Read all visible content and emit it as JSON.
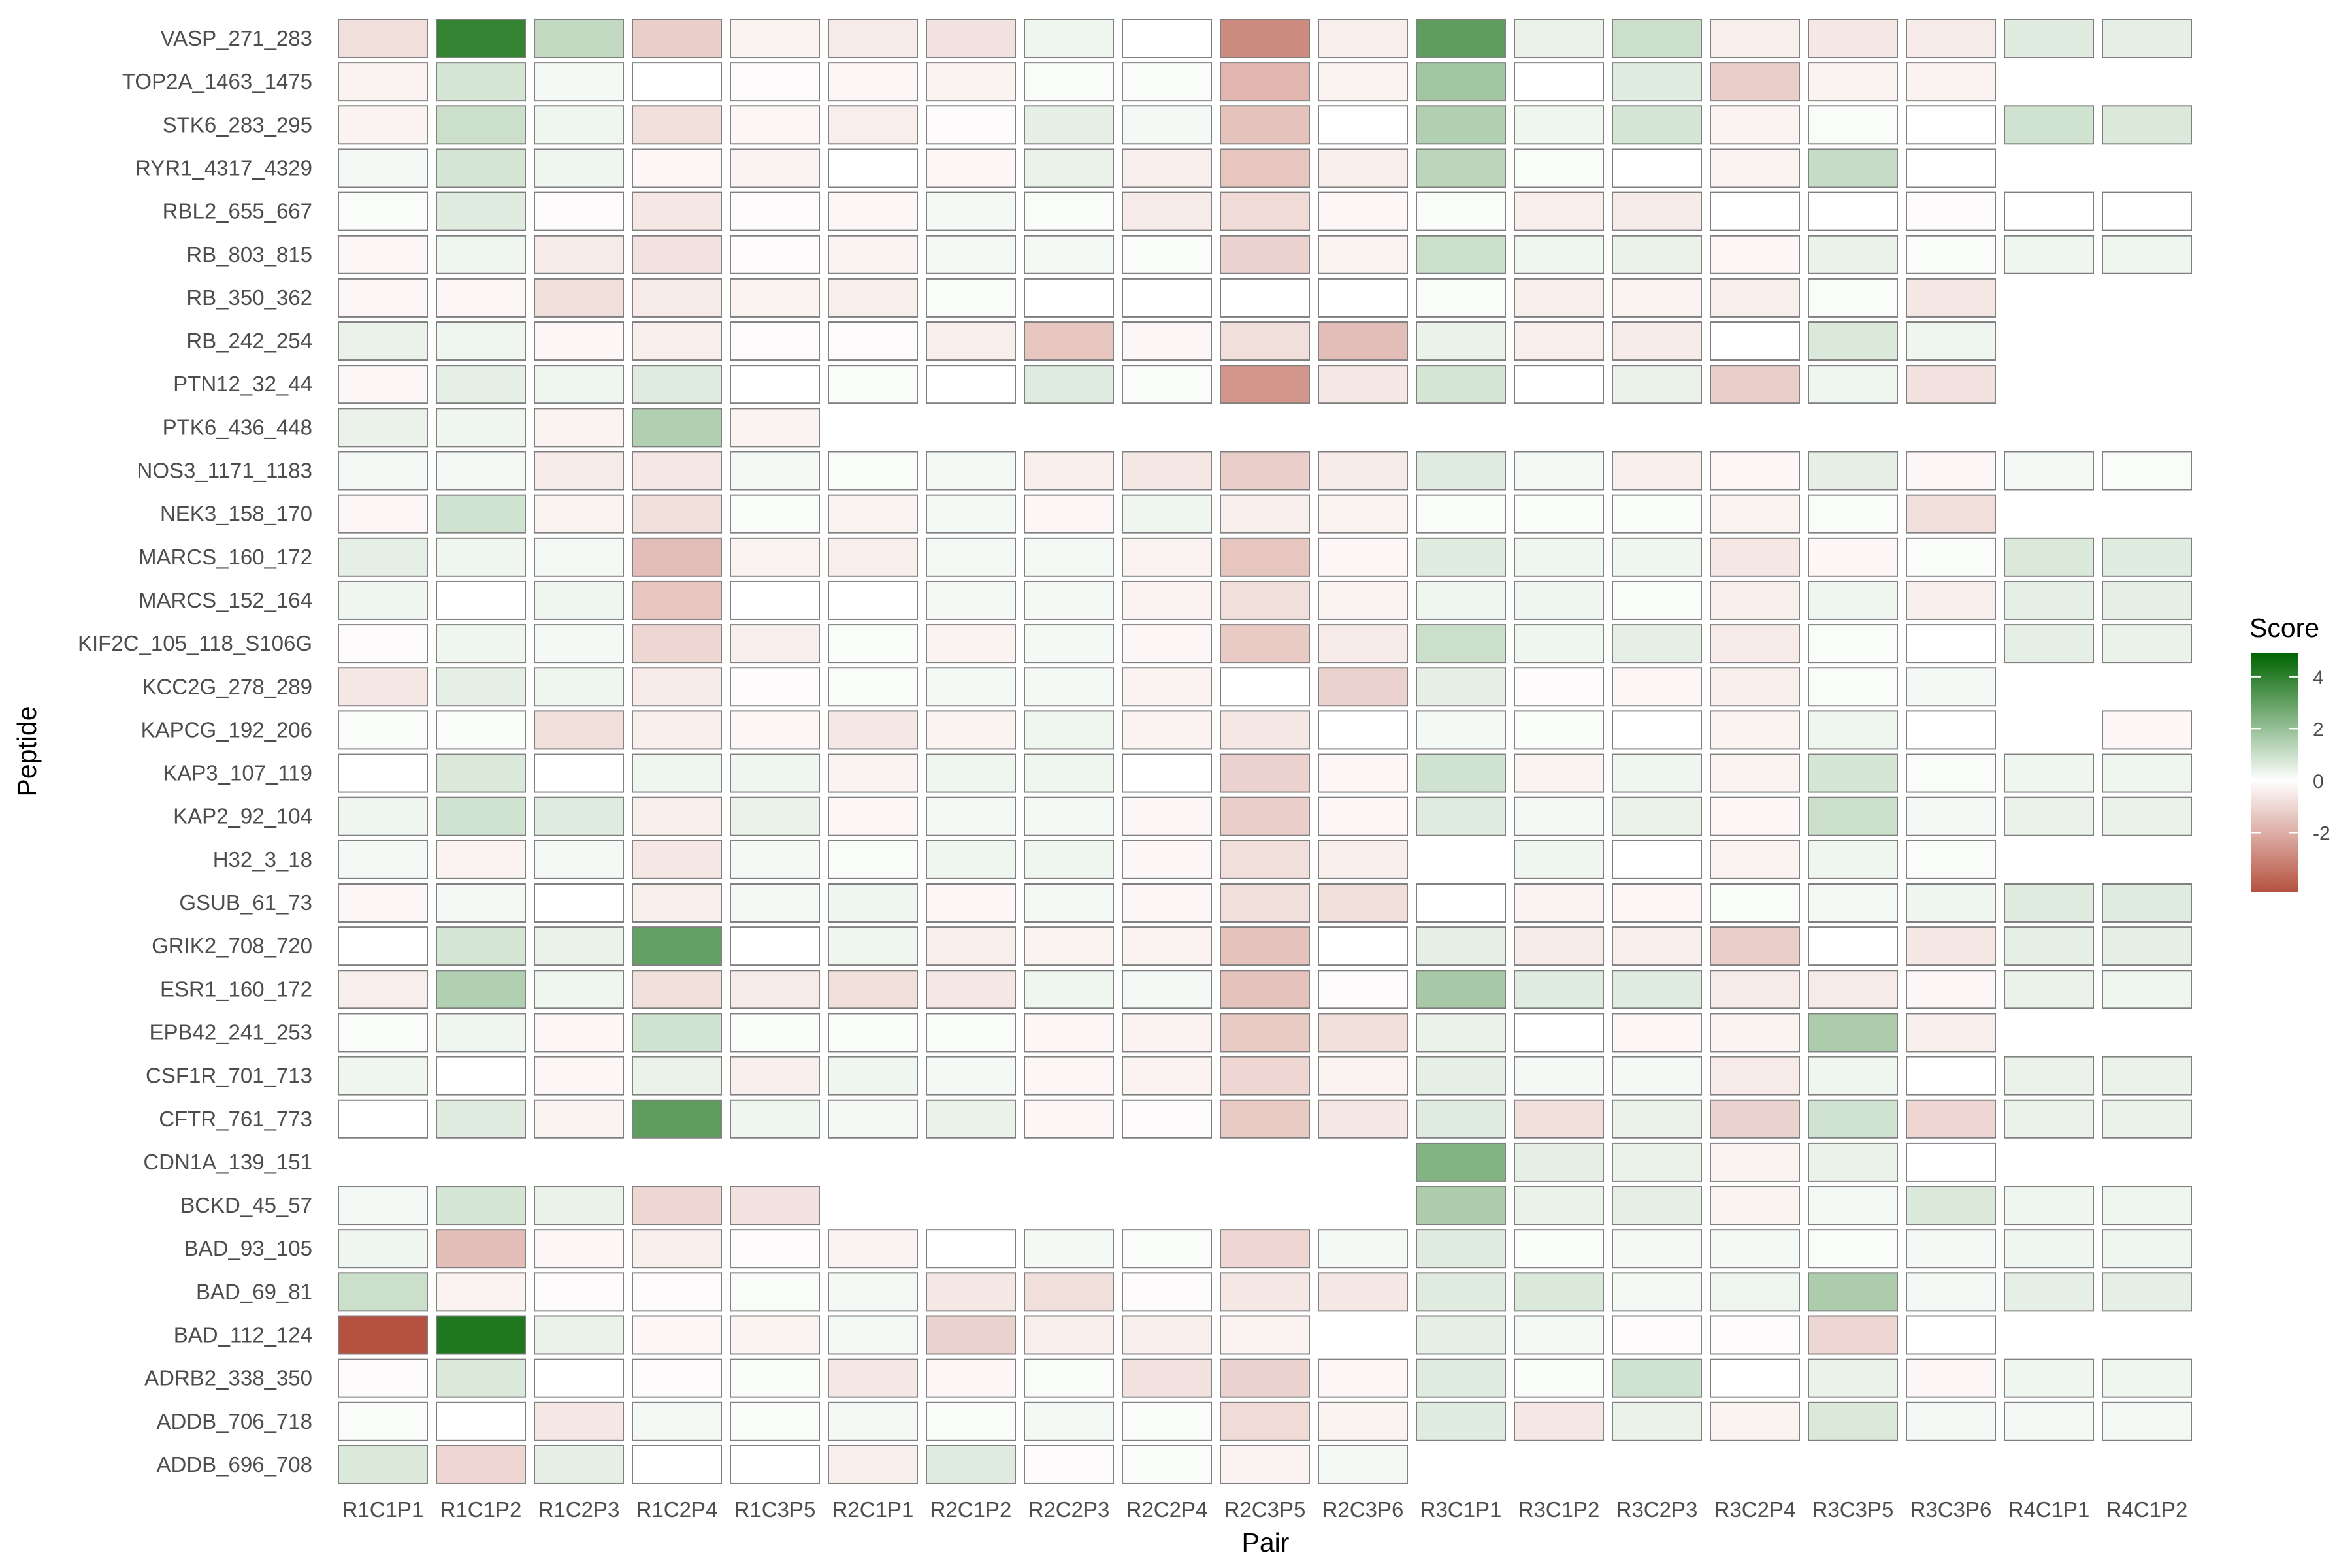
{
  "chart_data": {
    "type": "heatmap",
    "title": "",
    "xlabel": "Pair",
    "ylabel": "Peptide",
    "x_categories": [
      "R1C1P1",
      "R1C1P2",
      "R1C2P3",
      "R1C2P4",
      "R1C3P5",
      "R2C1P1",
      "R2C1P2",
      "R2C2P3",
      "R2C2P4",
      "R2C3P5",
      "R2C3P6",
      "R3C1P1",
      "R3C1P2",
      "R3C2P3",
      "R3C2P4",
      "R3C3P5",
      "R3C3P6",
      "R4C1P1",
      "R4C1P2"
    ],
    "y_categories": [
      "VASP_271_283",
      "TOP2A_1463_1475",
      "STK6_283_295",
      "RYR1_4317_4329",
      "RBL2_655_667",
      "RB_803_815",
      "RB_350_362",
      "RB_242_254",
      "PTN12_32_44",
      "PTK6_436_448",
      "NOS3_1171_1183",
      "NEK3_158_170",
      "MARCS_160_172",
      "MARCS_152_164",
      "KIF2C_105_118_S106G",
      "KCC2G_278_289",
      "KAPCG_192_206",
      "KAP3_107_119",
      "KAP2_92_104",
      "H32_3_18",
      "GSUB_61_73",
      "GRIK2_708_720",
      "ESR1_160_172",
      "EPB42_241_253",
      "CSF1R_701_713",
      "CFTR_761_773",
      "CDN1A_139_151",
      "BCKD_45_57",
      "BAD_93_105",
      "BAD_69_81",
      "BAD_112_124",
      "ADRB2_338_350",
      "ADDB_706_718",
      "ADDB_696_708"
    ],
    "values": [
      [
        -0.8,
        3.9,
        1.2,
        -1.2,
        -0.3,
        -0.5,
        -0.7,
        0.3,
        0.0,
        -2.9,
        -0.4,
        3.1,
        0.4,
        1.0,
        -0.4,
        -0.6,
        -0.5,
        0.6,
        0.5
      ],
      [
        -0.3,
        0.8,
        0.2,
        0.0,
        -0.1,
        -0.2,
        -0.3,
        0.1,
        0.1,
        -1.8,
        -0.3,
        1.8,
        0.0,
        0.6,
        -1.2,
        -0.3,
        -0.3,
        null,
        null
      ],
      [
        -0.3,
        1.0,
        0.3,
        -0.8,
        -0.2,
        -0.4,
        -0.1,
        0.5,
        0.2,
        -1.5,
        0.0,
        1.5,
        0.3,
        0.8,
        -0.3,
        0.1,
        0.0,
        0.9,
        0.7
      ],
      [
        0.2,
        0.8,
        0.3,
        -0.2,
        -0.3,
        0.0,
        -0.2,
        0.4,
        -0.4,
        -1.4,
        -0.4,
        1.3,
        0.1,
        0.0,
        -0.3,
        1.1,
        0.0,
        null,
        null
      ],
      [
        0.1,
        0.6,
        -0.1,
        -0.6,
        -0.1,
        -0.2,
        0.2,
        0.1,
        -0.5,
        -0.9,
        -0.2,
        0.1,
        -0.4,
        -0.5,
        0.0,
        0.0,
        -0.1,
        0.0,
        0.0
      ],
      [
        -0.2,
        0.3,
        -0.5,
        -0.7,
        -0.1,
        -0.3,
        0.2,
        0.2,
        0.1,
        -1.1,
        -0.3,
        1.0,
        0.3,
        0.4,
        -0.2,
        0.4,
        0.1,
        0.3,
        0.3
      ],
      [
        -0.2,
        -0.2,
        -0.8,
        -0.5,
        -0.3,
        -0.4,
        0.1,
        0.0,
        0.0,
        0.0,
        0.0,
        0.1,
        -0.4,
        -0.3,
        -0.4,
        0.1,
        -0.6,
        null,
        null
      ],
      [
        0.4,
        0.3,
        -0.2,
        -0.4,
        -0.1,
        -0.1,
        -0.4,
        -1.4,
        -0.2,
        -0.8,
        -1.6,
        0.4,
        -0.4,
        -0.5,
        0.0,
        0.7,
        0.3,
        null,
        null
      ],
      [
        -0.2,
        0.5,
        0.3,
        0.6,
        0.0,
        0.1,
        0.0,
        0.6,
        0.1,
        -2.6,
        -0.6,
        0.8,
        0.0,
        0.4,
        -1.2,
        0.3,
        -0.7,
        null,
        null
      ],
      [
        0.4,
        0.3,
        -0.3,
        1.5,
        -0.3,
        null,
        null,
        null,
        null,
        null,
        null,
        null,
        null,
        null,
        null,
        null,
        null,
        null,
        null
      ],
      [
        0.2,
        0.2,
        -0.5,
        -0.6,
        0.2,
        0.1,
        0.2,
        -0.4,
        -0.6,
        -1.2,
        -0.5,
        0.6,
        0.2,
        -0.4,
        -0.2,
        0.5,
        -0.2,
        0.2,
        0.1
      ],
      [
        -0.2,
        0.9,
        -0.3,
        -0.8,
        0.1,
        -0.3,
        0.2,
        -0.2,
        0.3,
        -0.4,
        -0.3,
        0.1,
        0.1,
        0.1,
        -0.3,
        0.1,
        -0.8,
        null,
        null
      ],
      [
        0.5,
        0.3,
        0.2,
        -1.6,
        -0.3,
        -0.4,
        0.2,
        0.2,
        -0.3,
        -1.4,
        -0.2,
        0.6,
        0.3,
        0.3,
        -0.6,
        -0.2,
        0.1,
        0.7,
        0.6
      ],
      [
        0.3,
        0.0,
        0.3,
        -1.4,
        0.0,
        0.0,
        0.2,
        0.2,
        -0.3,
        -0.8,
        -0.3,
        0.3,
        0.3,
        0.1,
        -0.4,
        0.3,
        -0.4,
        0.5,
        0.5
      ],
      [
        -0.1,
        0.3,
        0.2,
        -1.0,
        -0.4,
        0.1,
        -0.3,
        0.2,
        -0.2,
        -1.3,
        -0.5,
        1.0,
        0.3,
        0.5,
        -0.5,
        0.1,
        0.0,
        0.5,
        0.4
      ],
      [
        -0.6,
        0.5,
        0.3,
        -0.5,
        -0.1,
        0.1,
        0.2,
        0.2,
        -0.3,
        0.0,
        -1.1,
        0.5,
        -0.1,
        -0.2,
        -0.4,
        0.1,
        0.2,
        null,
        null
      ],
      [
        0.1,
        0.1,
        -0.8,
        -0.4,
        -0.2,
        -0.6,
        -0.3,
        0.3,
        -0.3,
        -0.6,
        0.0,
        0.2,
        0.1,
        0.0,
        -0.3,
        0.3,
        0.0,
        null,
        -0.2
      ],
      [
        0.0,
        0.7,
        0.0,
        0.3,
        0.3,
        -0.3,
        0.3,
        0.3,
        0.0,
        -1.1,
        -0.2,
        0.9,
        -0.3,
        0.3,
        -0.3,
        0.8,
        0.1,
        0.3,
        0.3
      ],
      [
        0.3,
        0.9,
        0.6,
        -0.4,
        0.4,
        -0.2,
        0.2,
        0.2,
        -0.2,
        -1.2,
        -0.2,
        0.6,
        0.2,
        0.4,
        -0.2,
        1.0,
        0.2,
        0.4,
        0.4
      ],
      [
        0.2,
        -0.3,
        0.2,
        -0.6,
        0.2,
        0.1,
        0.3,
        0.3,
        -0.2,
        -0.8,
        -0.4,
        null,
        0.3,
        0.0,
        -0.3,
        0.3,
        0.1,
        null,
        null
      ],
      [
        -0.2,
        0.2,
        0.0,
        -0.4,
        0.2,
        0.3,
        -0.2,
        0.2,
        -0.2,
        -0.8,
        -0.8,
        0.0,
        -0.3,
        -0.2,
        0.1,
        0.2,
        0.3,
        0.6,
        0.6
      ],
      [
        0.0,
        0.8,
        0.4,
        3.0,
        0.0,
        0.3,
        -0.4,
        -0.3,
        -0.3,
        -1.5,
        0.0,
        0.5,
        -0.5,
        -0.4,
        -1.2,
        0.0,
        -0.6,
        0.5,
        0.5
      ],
      [
        -0.4,
        1.5,
        0.3,
        -0.8,
        -0.5,
        -0.8,
        -0.6,
        0.3,
        0.2,
        -1.5,
        -0.1,
        1.7,
        0.6,
        0.6,
        -0.5,
        -0.5,
        -0.2,
        0.4,
        0.3
      ],
      [
        0.1,
        0.3,
        -0.2,
        0.9,
        0.1,
        0.1,
        0.1,
        -0.2,
        -0.3,
        -1.3,
        -0.8,
        0.4,
        0.0,
        -0.2,
        -0.3,
        1.6,
        -0.4,
        null,
        null
      ],
      [
        0.3,
        0.0,
        -0.2,
        0.4,
        -0.4,
        0.3,
        0.2,
        -0.2,
        -0.3,
        -1.0,
        -0.3,
        0.5,
        0.2,
        0.2,
        -0.5,
        0.3,
        0.0,
        0.4,
        0.4
      ],
      [
        0.0,
        0.6,
        -0.3,
        3.1,
        0.3,
        0.2,
        0.4,
        -0.2,
        -0.1,
        -1.3,
        -0.6,
        0.6,
        -0.8,
        0.4,
        -1.1,
        0.9,
        -1.0,
        0.4,
        0.4
      ],
      [
        null,
        null,
        null,
        null,
        null,
        null,
        null,
        null,
        null,
        null,
        null,
        2.4,
        0.5,
        0.4,
        -0.3,
        0.4,
        0.0,
        null,
        null
      ],
      [
        0.2,
        0.8,
        0.4,
        -1.0,
        -0.7,
        null,
        null,
        null,
        null,
        null,
        null,
        1.6,
        0.4,
        0.5,
        -0.3,
        0.2,
        0.7,
        0.3,
        0.3
      ],
      [
        0.3,
        -1.6,
        -0.2,
        -0.4,
        -0.1,
        -0.3,
        0.0,
        0.2,
        0.1,
        -1.0,
        0.2,
        0.6,
        0.1,
        0.2,
        0.2,
        0.1,
        0.2,
        0.3,
        0.3
      ],
      [
        1.0,
        -0.3,
        -0.1,
        -0.1,
        0.1,
        0.2,
        -0.6,
        -0.8,
        -0.1,
        -0.6,
        -0.6,
        0.6,
        0.7,
        0.2,
        0.3,
        1.6,
        0.2,
        0.5,
        0.5
      ],
      [
        -4.3,
        4.3,
        0.4,
        -0.2,
        -0.3,
        0.2,
        -1.1,
        -0.4,
        -0.4,
        -0.3,
        null,
        0.5,
        0.2,
        -0.1,
        -0.1,
        -1.0,
        0.0,
        null,
        null
      ],
      [
        -0.1,
        0.7,
        0.0,
        -0.1,
        0.1,
        -0.6,
        -0.2,
        0.1,
        -0.7,
        -1.1,
        -0.2,
        0.6,
        0.1,
        0.9,
        0.0,
        0.4,
        -0.2,
        0.3,
        0.3
      ],
      [
        0.1,
        0.0,
        -0.6,
        0.2,
        0.1,
        0.2,
        0.1,
        0.2,
        0.1,
        -0.9,
        -0.3,
        0.6,
        -0.6,
        0.4,
        -0.3,
        0.7,
        0.2,
        0.2,
        0.2
      ],
      [
        0.7,
        -1.0,
        0.5,
        0.0,
        0.0,
        -0.4,
        0.6,
        -0.1,
        0.1,
        -0.3,
        0.2,
        null,
        null,
        null,
        null,
        null,
        null,
        null,
        null
      ]
    ],
    "colorscale": {
      "title": "Score",
      "low": "#b5513f",
      "mid": "#ffffff",
      "high": "#006400",
      "range": [
        -4.3,
        4.9
      ],
      "ticks": [
        -2,
        0,
        2,
        4
      ]
    },
    "legend_position": "right",
    "grid": false
  }
}
